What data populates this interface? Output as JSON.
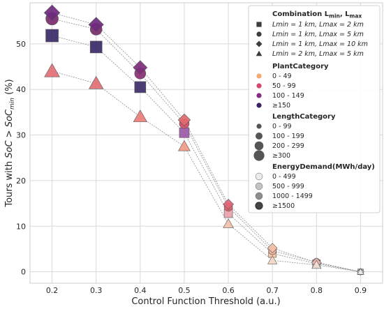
{
  "chart_data": {
    "type": "scatter",
    "xlabel": "Control Function Threshold (a.u.)",
    "ylabel": "Tours with SoC > SoC_min (%)",
    "x_ticks": [
      "0.2",
      "0.3",
      "0.4",
      "0.5",
      "0.6",
      "0.7",
      "0.8",
      "0.9"
    ],
    "y_ticks": [
      "0",
      "10",
      "20",
      "30",
      "40",
      "50"
    ],
    "xlim": [
      0.15,
      0.95
    ],
    "ylim": [
      -2.5,
      59
    ],
    "grid": true,
    "legend_position": "top-right",
    "series": [
      {
        "label": "Lmin = 1 km, Lmax = 2 km",
        "marker": "square",
        "x": [
          0.2,
          0.3,
          0.4,
          0.5,
          0.6,
          0.7,
          0.8,
          0.9
        ],
        "y": [
          51.8,
          49.3,
          40.5,
          30.5,
          12.8,
          4.0,
          1.8,
          0.0
        ],
        "colors": [
          "#3a2a68",
          "#3a2a68",
          "#3d2c6b",
          "#9c5aa8",
          "#e8a2ac",
          "#f6c6a2",
          "#f0bfae",
          "#e9e2e2"
        ]
      },
      {
        "label": "Lmin = 1 km, Lmax = 5 km",
        "marker": "circle",
        "x": [
          0.2,
          0.3,
          0.4,
          0.5,
          0.6,
          0.7,
          0.8,
          0.9
        ],
        "y": [
          55.5,
          53.2,
          43.5,
          32.5,
          14.2,
          4.6,
          2.1,
          0.0
        ],
        "colors": [
          "#7a2a6c",
          "#7a2a6c",
          "#8a2f74",
          "#d04a64",
          "#de5f6a",
          "#f3b39e",
          "#e9a8a5",
          "#e4dede"
        ]
      },
      {
        "label": "Lmin = 1 km, Lmax = 10 km",
        "marker": "diamond",
        "x": [
          0.2,
          0.3,
          0.4,
          0.5,
          0.6,
          0.7,
          0.8,
          0.9
        ],
        "y": [
          56.8,
          54.2,
          44.8,
          33.3,
          14.8,
          5.2,
          2.0,
          0.0
        ],
        "colors": [
          "#6e2a7d",
          "#6e2a7d",
          "#7d2d7a",
          "#e06a6e",
          "#e2667a",
          "#f2c0a6",
          "#ebb6b0",
          "#e6e0e0"
        ]
      },
      {
        "label": "Lmin = 2 km, Lmax = 5 km",
        "marker": "triangle",
        "x": [
          0.2,
          0.3,
          0.4,
          0.5,
          0.6,
          0.7,
          0.8,
          0.9
        ],
        "y": [
          44.0,
          41.3,
          34.0,
          27.5,
          10.5,
          2.5,
          1.5,
          0.0
        ],
        "colors": [
          "#e26f74",
          "#e26f74",
          "#ec7d7a",
          "#f29a87",
          "#f6c1a8",
          "#f4d8c6",
          "#f0e0d8",
          "#ece6e6"
        ]
      }
    ],
    "legend": {
      "combination": {
        "title": "Combination L",
        "title_sub_min": "min",
        "title_sep": ", L",
        "title_sub_max": "max",
        "items": [
          {
            "marker": "square",
            "label": "Lmin = 1 km, Lmax = 2 km"
          },
          {
            "marker": "circle",
            "label": "Lmin = 1 km, Lmax = 5 km"
          },
          {
            "marker": "diamond",
            "label": "Lmin = 1 km, Lmax = 10 km"
          },
          {
            "marker": "triangle",
            "label": "Lmin = 2 km, Lmax = 5 km"
          }
        ]
      },
      "plant_category": {
        "title": "PlantCategory",
        "items": [
          {
            "label": "0 - 49",
            "color": "#f7a96c"
          },
          {
            "label": "50 - 99",
            "color": "#d8476a"
          },
          {
            "label": "100 - 149",
            "color": "#8b2a8b"
          },
          {
            "label": "≥150",
            "color": "#3a2160"
          }
        ]
      },
      "length_category": {
        "title": "LengthCategory",
        "items": [
          {
            "label": "0 - 99",
            "radius": 3.6
          },
          {
            "label": "100 - 199",
            "radius": 5.0
          },
          {
            "label": "200 - 299",
            "radius": 6.3
          },
          {
            "label": "≥300",
            "radius": 7.6
          }
        ]
      },
      "energy_demand": {
        "title": "EnergyDemand(MWh/day)",
        "items": [
          {
            "label": "0 - 499",
            "color": "#ececec"
          },
          {
            "label": "500 - 999",
            "color": "#c4c4c4"
          },
          {
            "label": "1000 - 1499",
            "color": "#8e8e8e"
          },
          {
            "label": "≥1500",
            "color": "#444444"
          }
        ]
      }
    }
  },
  "colors": {
    "grid": "#d9d9d9",
    "axes_border": "#cccccc",
    "connector": "#8f8f8f"
  }
}
